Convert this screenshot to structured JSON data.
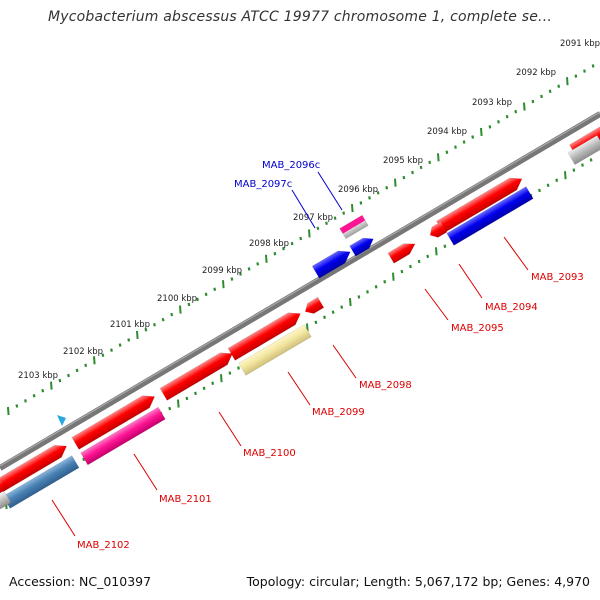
{
  "title": "Mycobacterium abscessus ATCC 19977 chromosome 1, complete se...",
  "footer": {
    "accession": "Accession: NC_010397",
    "summary": "Topology: circular; Length: 5,067,172 bp; Genes: 4,970"
  },
  "colors": {
    "backbone": "#777777",
    "tick": "#2e8b2e",
    "gene_label_forward": "#dd0000",
    "gene_label_reverse": "#0000cc",
    "cursor": "#29a8e0"
  },
  "ruler_labels": [
    "2091 kbp",
    "2092 kbp",
    "2093 kbp",
    "2094 kbp",
    "2095 kbp",
    "2096 kbp",
    "2097 kbp",
    "2098 kbp",
    "2099 kbp",
    "2100 kbp",
    "2101 kbp",
    "2102 kbp",
    "2103 kbp"
  ],
  "gene_labels": [
    "MAB_2093",
    "MAB_2094",
    "MAB_2095",
    "MAB_2098",
    "MAB_2099",
    "MAB_2100",
    "MAB_2101",
    "MAB_2102",
    "MAB_2096c",
    "MAB_2097c"
  ],
  "cursor_icon": "triangle-pointer-icon"
}
